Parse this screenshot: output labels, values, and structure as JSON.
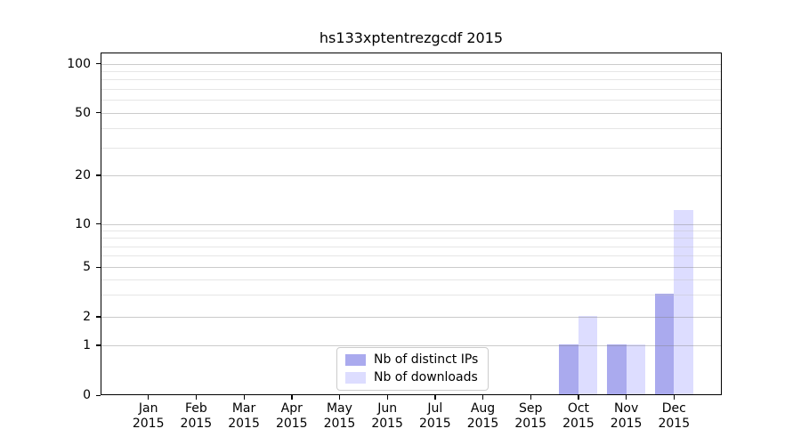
{
  "title": "hs133xptentrezgcdf 2015",
  "colors": {
    "distinct_ips": "#aaaaee",
    "downloads": "#ddddff",
    "spine": "#000000",
    "grid_major": "#cbcbcb",
    "grid_minor": "#e6e6e6",
    "background": "#ffffff",
    "text": "#000000"
  },
  "legend": {
    "items": [
      {
        "label": "Nb of distinct IPs",
        "color_key": "distinct_ips"
      },
      {
        "label": "Nb of downloads",
        "color_key": "downloads"
      }
    ]
  },
  "chart_data": {
    "type": "bar",
    "title": "hs133xptentrezgcdf 2015",
    "categories": [
      "Jan",
      "Feb",
      "Mar",
      "Apr",
      "May",
      "Jun",
      "Jul",
      "Aug",
      "Sep",
      "Oct",
      "Nov",
      "Dec"
    ],
    "year": "2015",
    "series": [
      {
        "name": "Nb of distinct IPs",
        "color_key": "distinct_ips",
        "values": [
          0,
          0,
          0,
          0,
          0,
          0,
          0,
          0,
          0,
          1,
          1,
          3
        ]
      },
      {
        "name": "Nb of downloads",
        "color_key": "downloads",
        "values": [
          0,
          0,
          0,
          0,
          0,
          0,
          0,
          0,
          0,
          2,
          1,
          12
        ]
      }
    ],
    "xlabel": "",
    "ylabel": "",
    "yticks": [
      0,
      1,
      2,
      5,
      10,
      20,
      50,
      100
    ],
    "yticks_minor": [
      3,
      4,
      6,
      7,
      8,
      9,
      30,
      40,
      60,
      70,
      80,
      90
    ],
    "ylim": [
      0,
      104
    ],
    "yscale": "symlog",
    "grid": "horizontal major+minor, drawn over bars",
    "legend_position": "inside lower-center",
    "bars_per_month": "pair side-by-side, distinct IPs left, downloads right"
  }
}
